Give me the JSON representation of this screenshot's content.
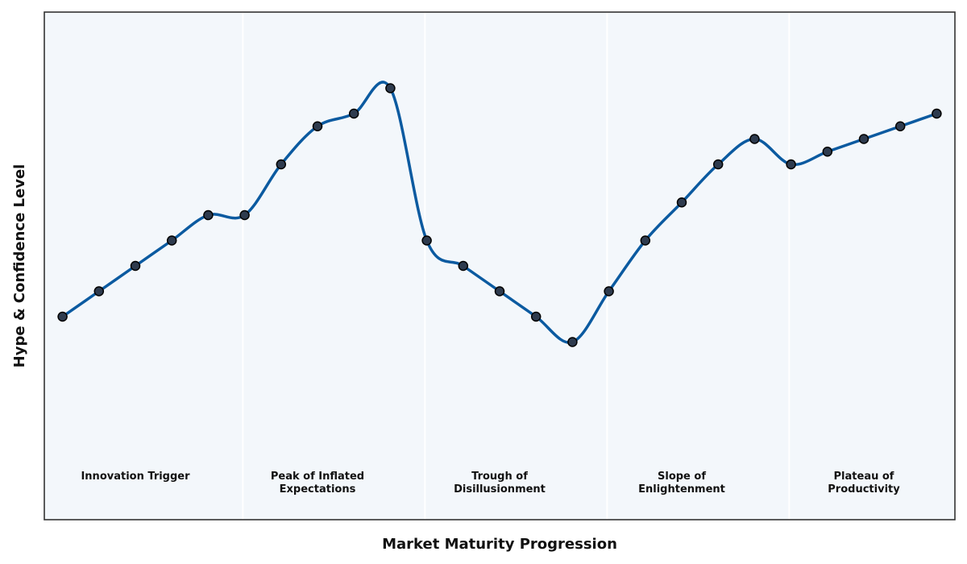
{
  "chart_data": {
    "type": "line",
    "title": "",
    "xlabel": "Market Maturity Progression",
    "ylabel": "Hype & Confidence Level",
    "xlim": [
      -0.5,
      24.5
    ],
    "ylim": [
      0,
      10
    ],
    "grid": false,
    "x": [
      0,
      1,
      2,
      3,
      4,
      5,
      6,
      7,
      8,
      9,
      10,
      11,
      12,
      13,
      14,
      15,
      16,
      17,
      18,
      19,
      20,
      21,
      22,
      23,
      24
    ],
    "series": [
      {
        "values": [
          4,
          4.5,
          5,
          5.5,
          6,
          6,
          7,
          7.75,
          8,
          8.5,
          5.5,
          5,
          4.5,
          4,
          3.5,
          4.5,
          5.5,
          6.25,
          7,
          7.5,
          7,
          7.25,
          7.5,
          7.75,
          8
        ]
      }
    ],
    "phases": [
      {
        "label": "Innovation Trigger",
        "start": -0.5,
        "end": 4.95,
        "center": 2
      },
      {
        "label": "Peak of Inflated\nExpectations",
        "start": 4.95,
        "end": 9.95,
        "center": 7
      },
      {
        "label": "Trough of\nDisillusionment",
        "start": 9.95,
        "end": 14.95,
        "center": 12
      },
      {
        "label": "Slope of\nEnlightenment",
        "start": 14.95,
        "end": 19.95,
        "center": 17
      },
      {
        "label": "Plateau of\nProductivity",
        "start": 19.95,
        "end": 24.5,
        "center": 22
      }
    ],
    "colors": {
      "line": "#0b5aa0",
      "marker_fill": "#2e3b4e",
      "marker_edge": "#000000",
      "plot_background": "#f3f7fb",
      "separator": "#ffffff",
      "frame": "#333333"
    }
  }
}
